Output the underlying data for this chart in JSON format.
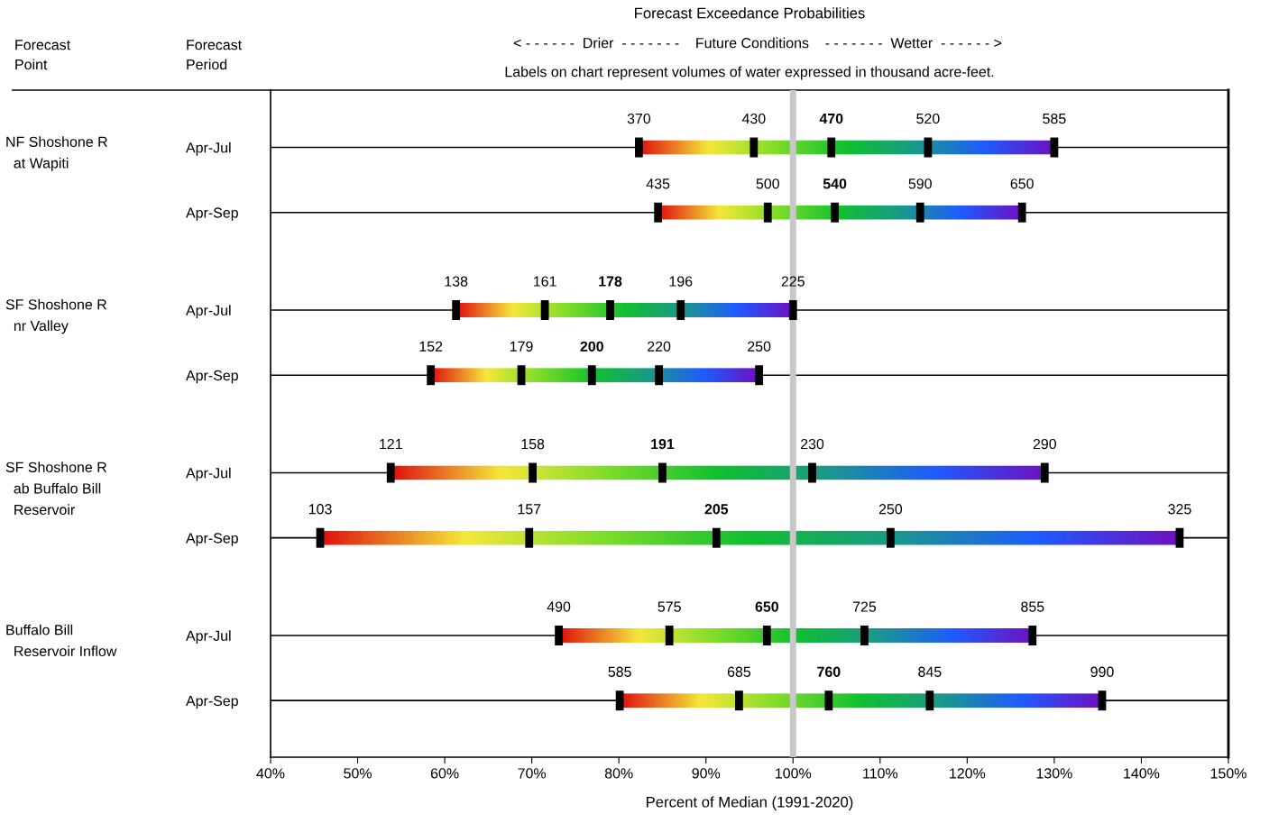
{
  "chart_data": {
    "type": "bar",
    "orientation": "horizontal",
    "title": "Forecast Exceedance Probabilities",
    "xlabel": "Percent of Median (1991-2020)",
    "categories": [
      "Apr-Jul",
      "Apr-Sep",
      "Apr-Jul",
      "Apr-Sep",
      "Apr-Jul",
      "Apr-Sep",
      "Apr-Jul",
      "Apr-Sep"
    ],
    "base": [
      82.3,
      84.5,
      61.3,
      58.4,
      53.8,
      45.7,
      73.1,
      80.1
    ],
    "values": [
      47.7,
      41.8,
      38.7,
      37.7,
      75.1,
      98.7,
      54.4,
      55.4
    ],
    "series": [
      {
        "type": "scatter",
        "color": "#000000",
        "values": [
          82.3,
          84.5,
          61.3,
          58.4,
          53.8,
          45.7,
          73.1,
          80.1
        ]
      },
      {
        "type": "scatter",
        "color": "#000000",
        "values": [
          95.5,
          97.1,
          71.5,
          68.8,
          70.1,
          69.7,
          85.8,
          93.8
        ]
      },
      {
        "type": "scatter",
        "color": "#000000",
        "values": [
          104.4,
          104.8,
          79.0,
          76.9,
          85.0,
          91.2,
          97.0,
          104.1
        ]
      },
      {
        "type": "scatter",
        "color": "#000000",
        "values": [
          115.5,
          114.6,
          87.1,
          84.6,
          102.2,
          111.2,
          108.2,
          115.7
        ]
      },
      {
        "type": "scatter",
        "color": "#000000",
        "values": [
          130.0,
          126.3,
          100.0,
          96.1,
          128.9,
          144.4,
          127.5,
          135.5
        ]
      }
    ],
    "xlim": [
      40,
      150
    ],
    "xticks": [
      {
        "value": 40,
        "label": "40%"
      },
      {
        "value": 50,
        "label": "50%"
      },
      {
        "value": 60,
        "label": "60%"
      },
      {
        "value": 70,
        "label": "70%"
      },
      {
        "value": 80,
        "label": "80%"
      },
      {
        "value": 90,
        "label": "90%"
      },
      {
        "value": 100,
        "label": "100%"
      },
      {
        "value": 110,
        "label": "110%"
      },
      {
        "value": 120,
        "label": "120%"
      },
      {
        "value": 130,
        "label": "130%"
      },
      {
        "value": 140,
        "label": "140%"
      },
      {
        "value": 150,
        "label": "150%"
      }
    ],
    "ref_lines": [
      {
        "axis": "x",
        "value": 100,
        "color": "#c8c8c8"
      }
    ],
    "grid": "y",
    "annotations": [
      "Forecast\nPoint",
      "Forecast\nPeriod",
      "< - - - - - -  Drier  - - - - - - -    Future Conditions    - - - - - - -  Wetter  - - - - - - >",
      "Labels on chart represent volumes of water expressed in thousand acre-feet.",
      "NF Shoshone R\n  at Wapiti",
      "SF Shoshone R\n  nr Valley",
      "SF Shoshone R\n  ab Buffalo Bill\n  Reservoir",
      "Buffalo Bill\n  Reservoir Inflow",
      "370",
      "430",
      "470",
      "520",
      "585",
      "435",
      "500",
      "540",
      "590",
      "650",
      "138",
      "161",
      "178",
      "196",
      "225",
      "152",
      "179",
      "200",
      "220",
      "250",
      "121",
      "158",
      "191",
      "230",
      "290",
      "103",
      "157",
      "205",
      "250",
      "325",
      "490",
      "575",
      "650",
      "725",
      "855",
      "585",
      "685",
      "760",
      "845",
      "990"
    ]
  }
}
